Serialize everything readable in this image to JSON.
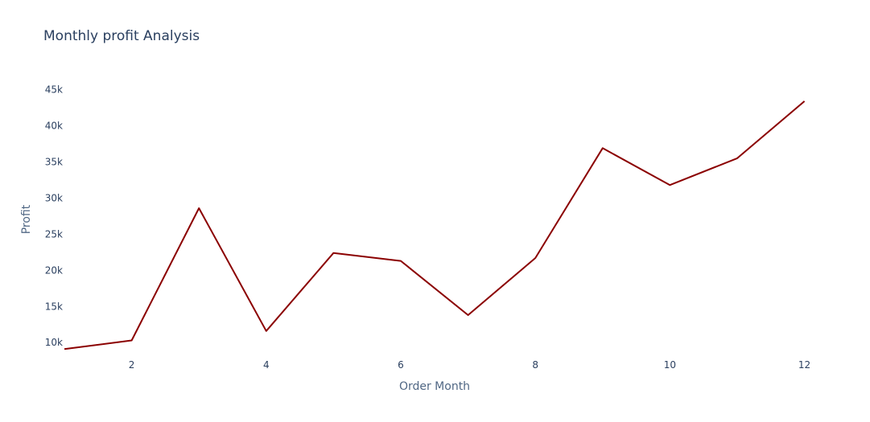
{
  "chart_data": {
    "type": "line",
    "title": "Monthly profit Analysis",
    "xlabel": "Order Month",
    "ylabel": "Profit",
    "x": [
      1,
      2,
      3,
      4,
      5,
      6,
      7,
      8,
      9,
      10,
      11,
      12
    ],
    "series": [
      {
        "values": [
          9100,
          10300,
          28600,
          11600,
          22400,
          21300,
          13800,
          21700,
          36900,
          31800,
          35500,
          43400
        ],
        "color": "#8b0000"
      }
    ],
    "xlim": [
      1,
      12.4
    ],
    "ylim": [
      7800,
      48500
    ],
    "x_ticks": [
      2,
      4,
      6,
      8,
      10,
      12
    ],
    "y_ticks": [
      10000,
      15000,
      20000,
      25000,
      30000,
      35000,
      40000,
      45000
    ],
    "y_tick_labels": [
      "10k",
      "15k",
      "20k",
      "25k",
      "30k",
      "35k",
      "40k",
      "45k"
    ],
    "grid": false,
    "legend": "none"
  }
}
